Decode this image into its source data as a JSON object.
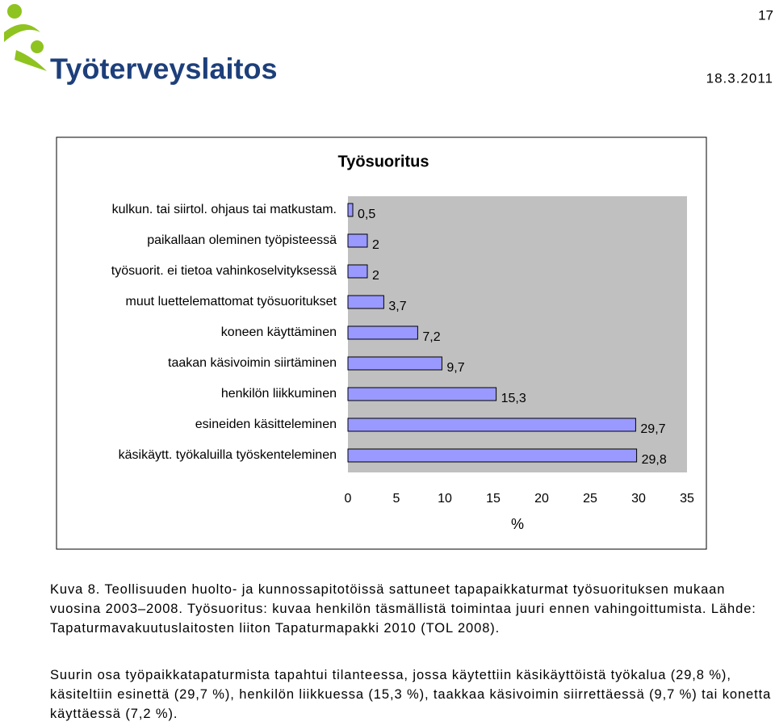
{
  "header": {
    "logo_text": "Työterveyslaitos",
    "page_number": "17",
    "date": "18.3.2011"
  },
  "chart_data": {
    "type": "hbar",
    "title": "Työsuoritus",
    "x_label": "%",
    "categories": [
      "kulkun. tai siirtol. ohjaus tai matkustam.",
      "paikallaan oleminen työpisteessä",
      "työsuorit. ei tietoa vahinkoselvityksessä",
      "muut luettelemattomat työsuoritukset",
      "koneen käyttäminen",
      "taakan käsivoimin siirtäminen",
      "henkilön liikkuminen",
      "esineiden käsitteleminen",
      "käsikäytt. työkaluilla työskenteleminen"
    ],
    "values": [
      0.5,
      2,
      2,
      3.7,
      7.2,
      9.7,
      15.3,
      29.7,
      29.8
    ],
    "value_labels": [
      "0,5",
      "2",
      "2",
      "3,7",
      "7,2",
      "9,7",
      "15,3",
      "29,7",
      "29,8"
    ],
    "color": "#9999ff",
    "xlim": [
      0,
      35
    ],
    "xticks": [
      0,
      5,
      10,
      15,
      20,
      25,
      30,
      35
    ]
  },
  "caption": "Kuva 8. Teollisuuden huolto- ja kunnossapitotöissä sattuneet tapapaikkaturmat työsuorituksen mukaan vuosina 2003–2008. Työsuoritus: kuvaa henkilön täsmällistä toimintaa juuri ennen vahingoittumista. Lähde: Tapaturmavakuutuslaitosten liiton Tapaturmapakki 2010 (TOL 2008).",
  "body": "Suurin osa työpaikkatapaturmista tapahtui tilanteessa, jossa käytettiin käsikäyttöistä työkalua (29,8 %), käsiteltiin esinettä (29,7 %), henkilön liikkuessa (15,3 %), taakkaa käsivoimin siirrettäessä (9,7 %) tai konetta käyttäessä (7,2 %)."
}
